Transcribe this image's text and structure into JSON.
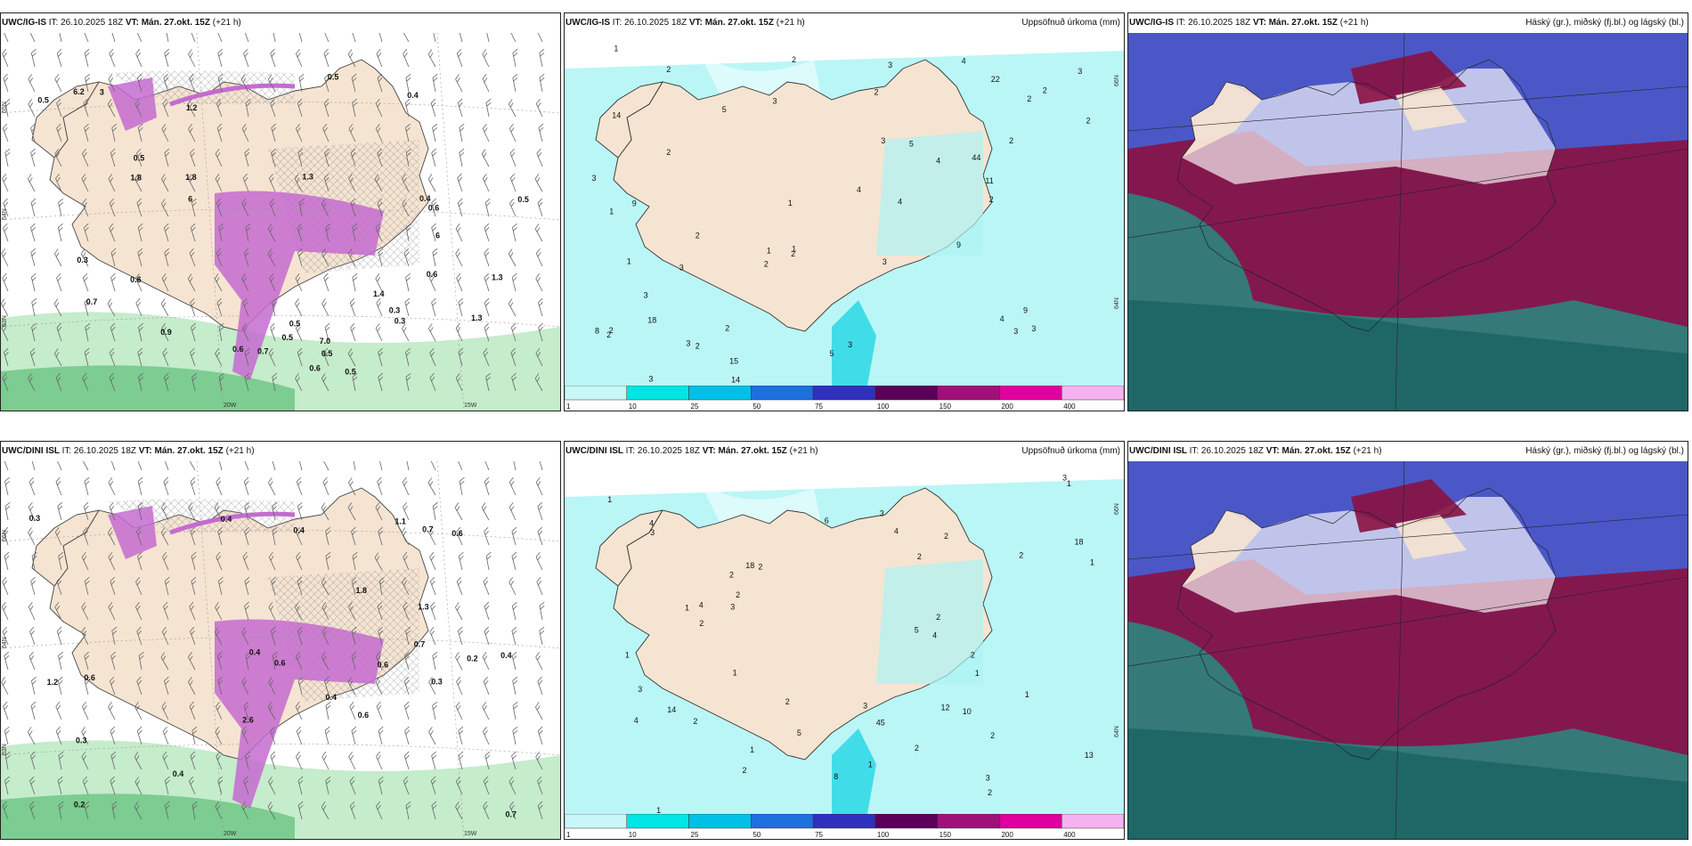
{
  "panels": [
    {
      "model": "UWC/IG-IS",
      "it_label": "IT: 26.10.2025 18Z",
      "vt_label": "VT: Mán. 27.okt. 15Z",
      "lead": "(+21 h)",
      "param": "",
      "type": "wind",
      "values": [
        "0.6",
        "0.5",
        "1.3",
        "0.5",
        "0.5",
        "0.7",
        "0.5",
        "0.3",
        "0.4",
        "0.5",
        "0.6",
        "1.3",
        "0.7",
        "0.5",
        "0.4",
        "0.5",
        "0.3",
        "0.3",
        "1.3",
        "0.6",
        "3",
        "6",
        "1.8",
        "6",
        "7.0",
        "0.9",
        "0.5",
        "0.6",
        "1.2",
        "1.8",
        "6.2",
        "1.4",
        "0.6"
      ],
      "lat_labels": [
        "65N",
        "64N",
        "63N"
      ],
      "lon_labels": [
        "20W",
        "15W"
      ]
    },
    {
      "model": "UWC/IG-IS",
      "it_label": "IT: 26.10.2025 18Z",
      "vt_label": "VT: Mán. 27.okt. 15Z",
      "lead": "(+21 h)",
      "param": "Uppsöfnuð úrkoma (mm)",
      "type": "precip",
      "values": [
        "2",
        "3",
        "2",
        "3",
        "15",
        "14",
        "2",
        "1",
        "5",
        "5",
        "14",
        "18",
        "2",
        "2",
        "22",
        "11",
        "4",
        "1",
        "2",
        "3",
        "2",
        "4",
        "3",
        "5",
        "2",
        "2",
        "1",
        "2",
        "1",
        "3",
        "3",
        "3",
        "1",
        "4",
        "2",
        "3",
        "3",
        "2",
        "3",
        "4",
        "4",
        "3",
        "2",
        "9",
        "9",
        "2",
        "3",
        "44",
        "9",
        "2",
        "8",
        "3",
        "1",
        "2"
      ],
      "lat_labels": [
        "66N",
        "64N"
      ],
      "lon_labels": []
    },
    {
      "model": "UWC/IG-IS",
      "it_label": "IT: 26.10.2025 18Z",
      "vt_label": "VT: Mán. 27.okt. 15Z",
      "lead": "(+21 h)",
      "param": "Háský (gr.), miðský (fj.bl.) og lágský (bl.)",
      "type": "cloud"
    },
    {
      "model": "UWC/DINI ISL",
      "it_label": "IT: 26.10.2025 18Z",
      "vt_label": "VT: Mán. 27.okt. 15Z",
      "lead": "(+21 h)",
      "param": "",
      "type": "wind",
      "values": [
        "0.4",
        "0.3",
        "0.3",
        "0.3",
        "0.4",
        "0.2",
        "0.7",
        "0.7",
        "0.4",
        "0.2",
        "0.7",
        "0.6",
        "0.4",
        "1.3",
        "1.2",
        "0.6",
        "0.4",
        "0.6",
        "1.8",
        "1.1",
        "2.6",
        "0.6",
        "0.4",
        "0.6"
      ],
      "lat_labels": [
        "66N",
        "64N",
        "63N"
      ],
      "lon_labels": [
        "20W",
        "15W"
      ]
    },
    {
      "model": "UWC/DINI ISL",
      "it_label": "IT: 26.10.2025 18Z",
      "vt_label": "VT: Mán. 27.okt. 15Z",
      "lead": "(+21 h)",
      "param": "Uppsöfnuð úrkoma (mm)",
      "type": "precip",
      "values": [
        "1",
        "8",
        "1",
        "1",
        "12",
        "18",
        "10",
        "4",
        "4",
        "2",
        "1",
        "2",
        "2",
        "2",
        "1",
        "5",
        "3",
        "3",
        "14",
        "18",
        "2",
        "2",
        "2",
        "4",
        "6",
        "2",
        "3",
        "3",
        "4",
        "1",
        "5",
        "2",
        "1",
        "2",
        "4",
        "1",
        "2",
        "3",
        "13",
        "3",
        "1",
        "45",
        "2",
        "2",
        "1",
        "3",
        "1",
        "2",
        "2"
      ],
      "lat_labels": [
        "66N",
        "64N"
      ],
      "lon_labels": []
    },
    {
      "model": "UWC/DINI ISL",
      "it_label": "IT: 26.10.2025 18Z",
      "vt_label": "VT: Mán. 27.okt. 15Z",
      "lead": "(+21 h)",
      "param": "Háský (gr.), miðský (fj.bl.) og lágský (bl.)",
      "type": "cloud"
    }
  ],
  "precip_legend": {
    "ticks": [
      "1",
      "10",
      "25",
      "50",
      "75",
      "100",
      "150",
      "200",
      "400"
    ],
    "colors": [
      "#c9f7f7",
      "#00e5e5",
      "#00c0e8",
      "#1e6fe0",
      "#3030c0",
      "#5a005a",
      "#a0107a",
      "#e000a0",
      "#f6b2f0"
    ]
  },
  "colors": {
    "land": "#f6e4d2",
    "precip_light": "#aef4f4",
    "precip_mid": "#40dde8",
    "wind_precip": "#c46bd0",
    "sea_green": "#9ee0a8",
    "cloud_high": "#8a1240",
    "cloud_mid": "#4b57c7",
    "cloud_low": "#1b9a88"
  }
}
